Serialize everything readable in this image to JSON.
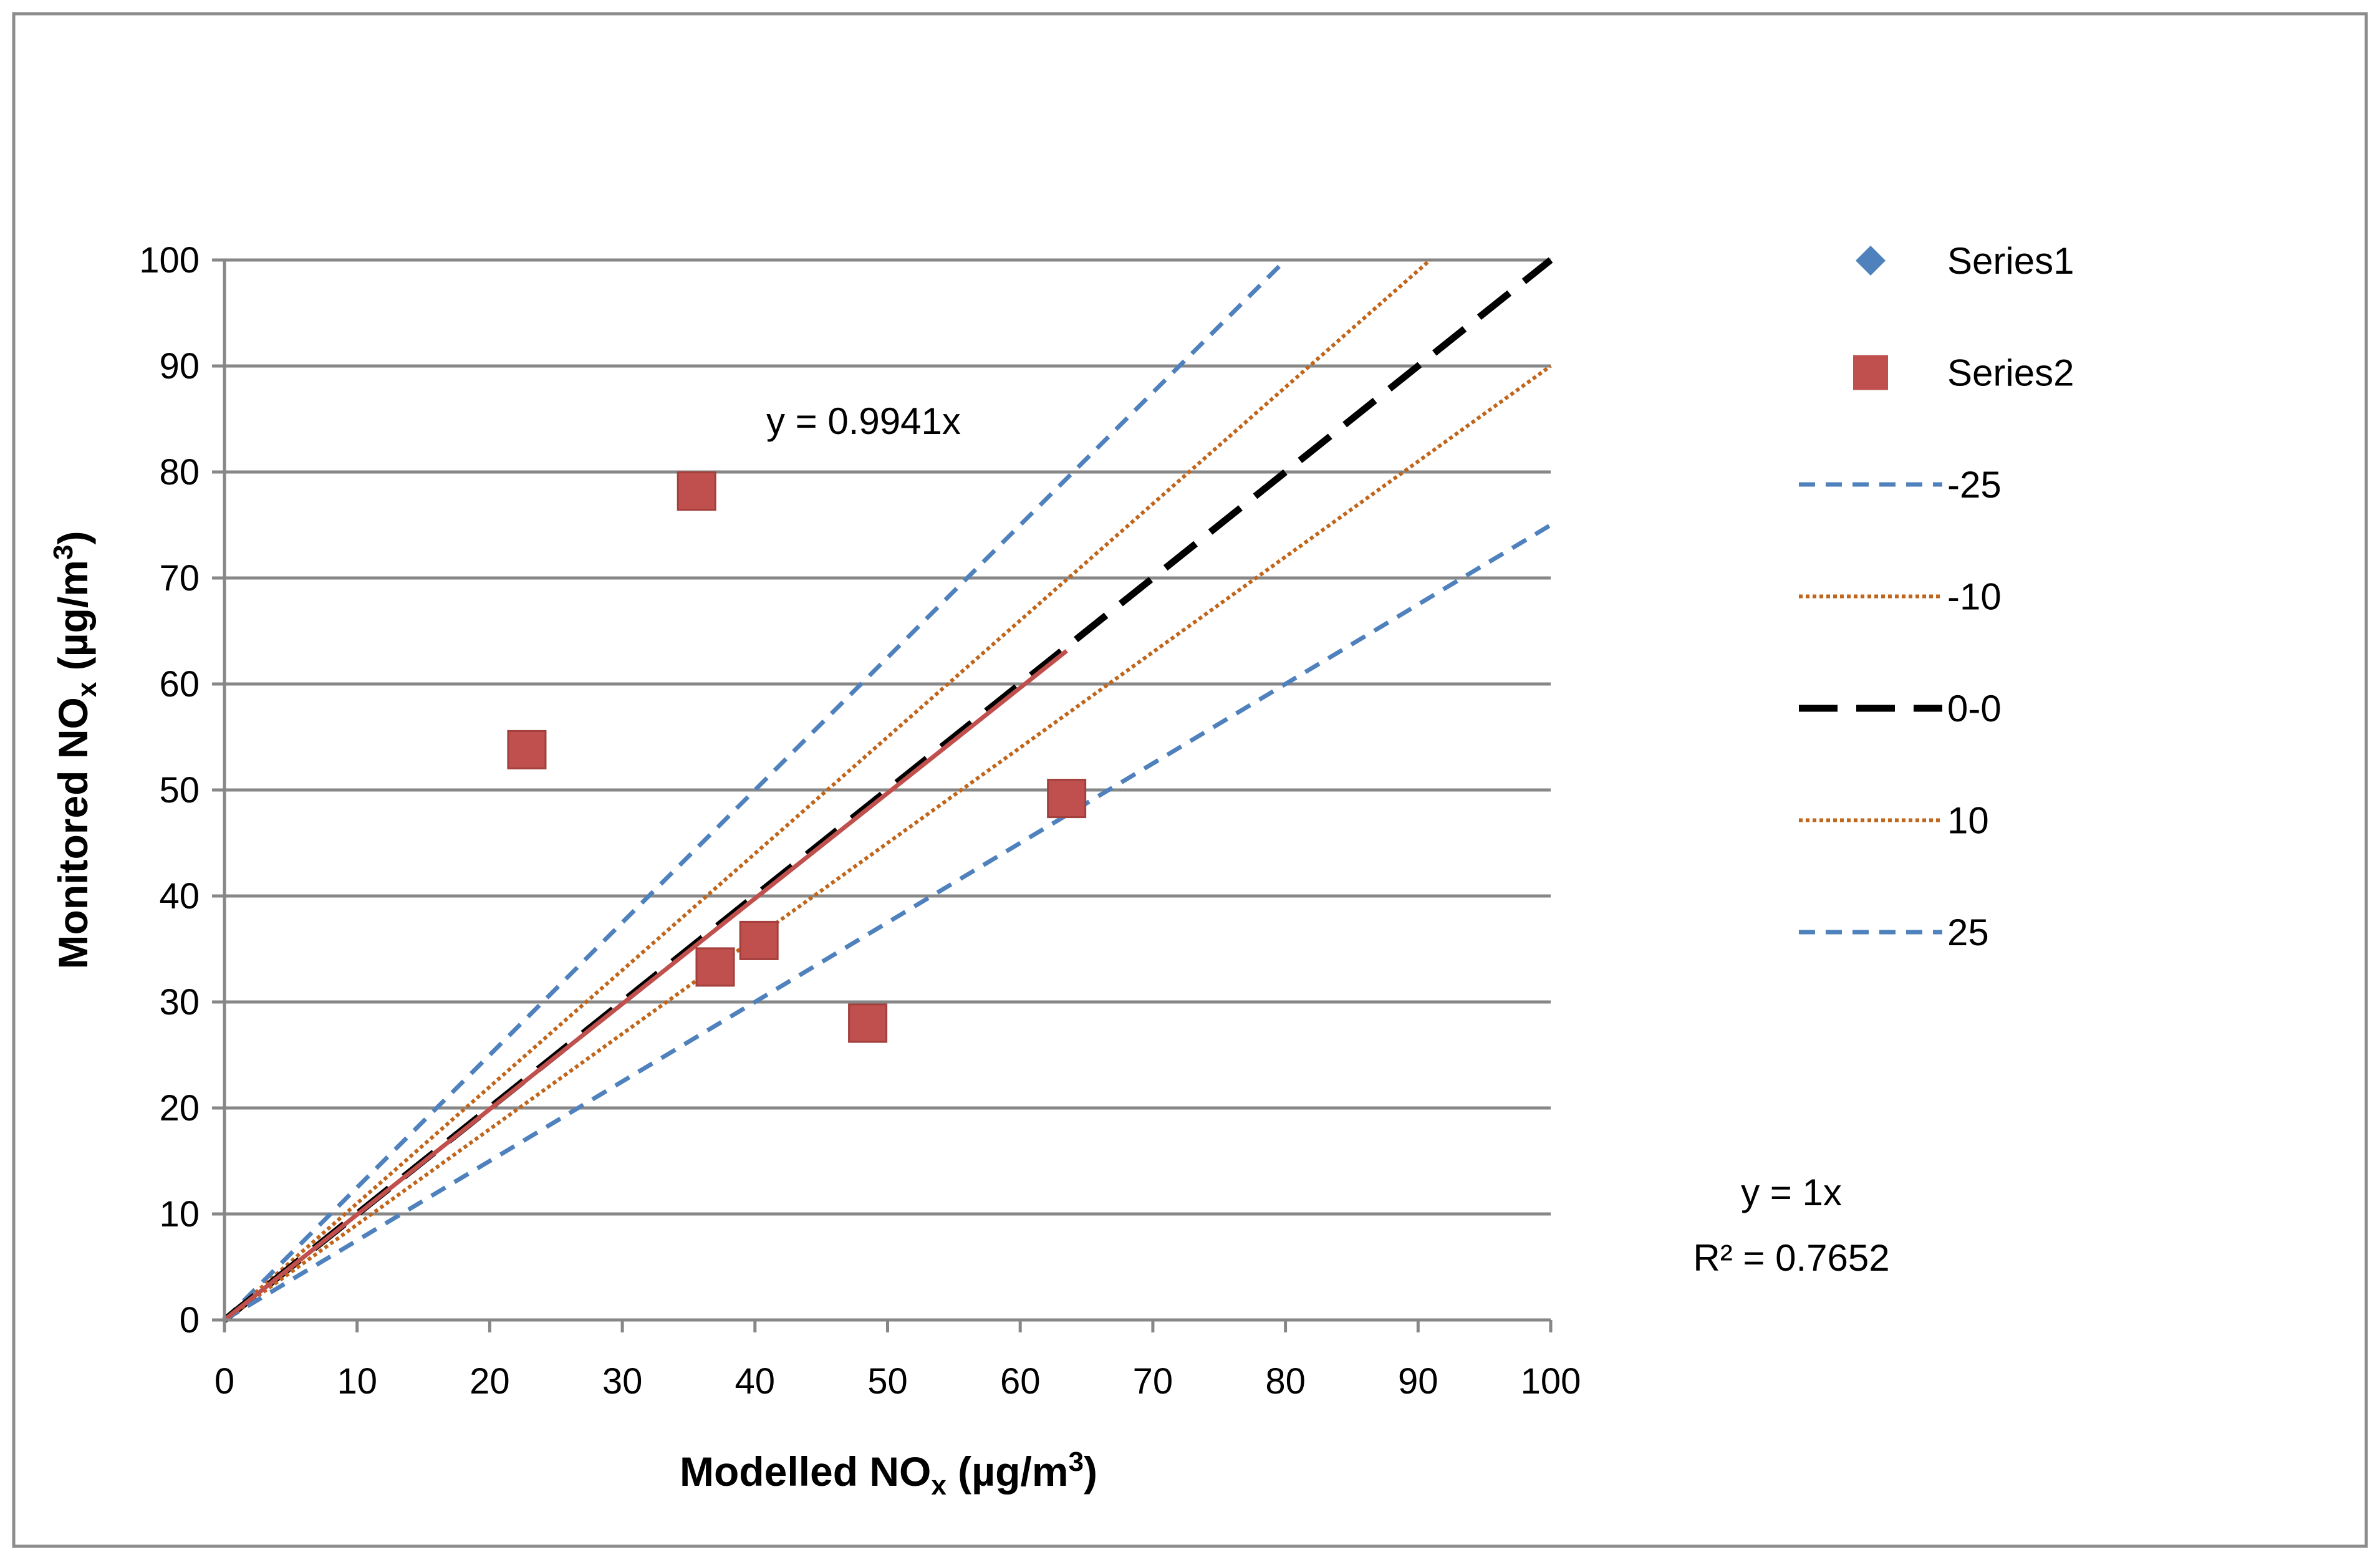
{
  "chart_data": {
    "type": "scatter",
    "title": "",
    "xlabel": "Modelled NO",
    "xlabel_sub": "x",
    "xlabel_unit": " (µg/m",
    "xlabel_sup": "3",
    "xlabel_close": ")",
    "ylabel": "Monitored NO",
    "ylabel_sub": "x",
    "ylabel_unit": " (µg/m",
    "ylabel_sup": "3",
    "ylabel_close": ")",
    "xlim": [
      0,
      100
    ],
    "ylim": [
      0,
      100
    ],
    "x_ticks": [
      "0",
      "10",
      "20",
      "30",
      "40",
      "50",
      "60",
      "70",
      "80",
      "90",
      "100"
    ],
    "y_ticks": [
      "0",
      "10",
      "20",
      "30",
      "40",
      "50",
      "60",
      "70",
      "80",
      "90",
      "100"
    ],
    "grid": "horizontal",
    "legend_position": "right",
    "series": [
      {
        "name": "Series1",
        "kind": "scatter",
        "marker": "diamond",
        "color": "#4f81bd",
        "points": []
      },
      {
        "name": "Series2",
        "kind": "scatter",
        "marker": "square",
        "color": "#c0504d",
        "points": [
          [
            22.8,
            53.8
          ],
          [
            35.6,
            78.2
          ],
          [
            37.0,
            33.3
          ],
          [
            40.3,
            35.8
          ],
          [
            48.5,
            28.0
          ],
          [
            63.5,
            49.2
          ]
        ]
      },
      {
        "name": "-25",
        "kind": "line",
        "slope": 1.25,
        "style": "dashed",
        "color": "#4f81bd"
      },
      {
        "name": "-10",
        "kind": "line",
        "slope": 1.1,
        "style": "dotted",
        "color": "#c0651a"
      },
      {
        "name": "0-0",
        "kind": "line",
        "slope": 1.0,
        "style": "longdash",
        "color": "#000000"
      },
      {
        "name": "10",
        "kind": "line",
        "slope": 0.9,
        "style": "dotted",
        "color": "#c0651a"
      },
      {
        "name": "25",
        "kind": "line",
        "slope": 0.75,
        "style": "dashed",
        "color": "#4f81bd"
      }
    ],
    "trendline": {
      "slope": 0.9941,
      "x_range": [
        0,
        63.5
      ],
      "color": "#c0504d"
    },
    "annotations": {
      "trend_equation": "y = 0.9941x",
      "series1_equation": "y = 1x",
      "r_squared": "R² = 0.7652"
    }
  }
}
